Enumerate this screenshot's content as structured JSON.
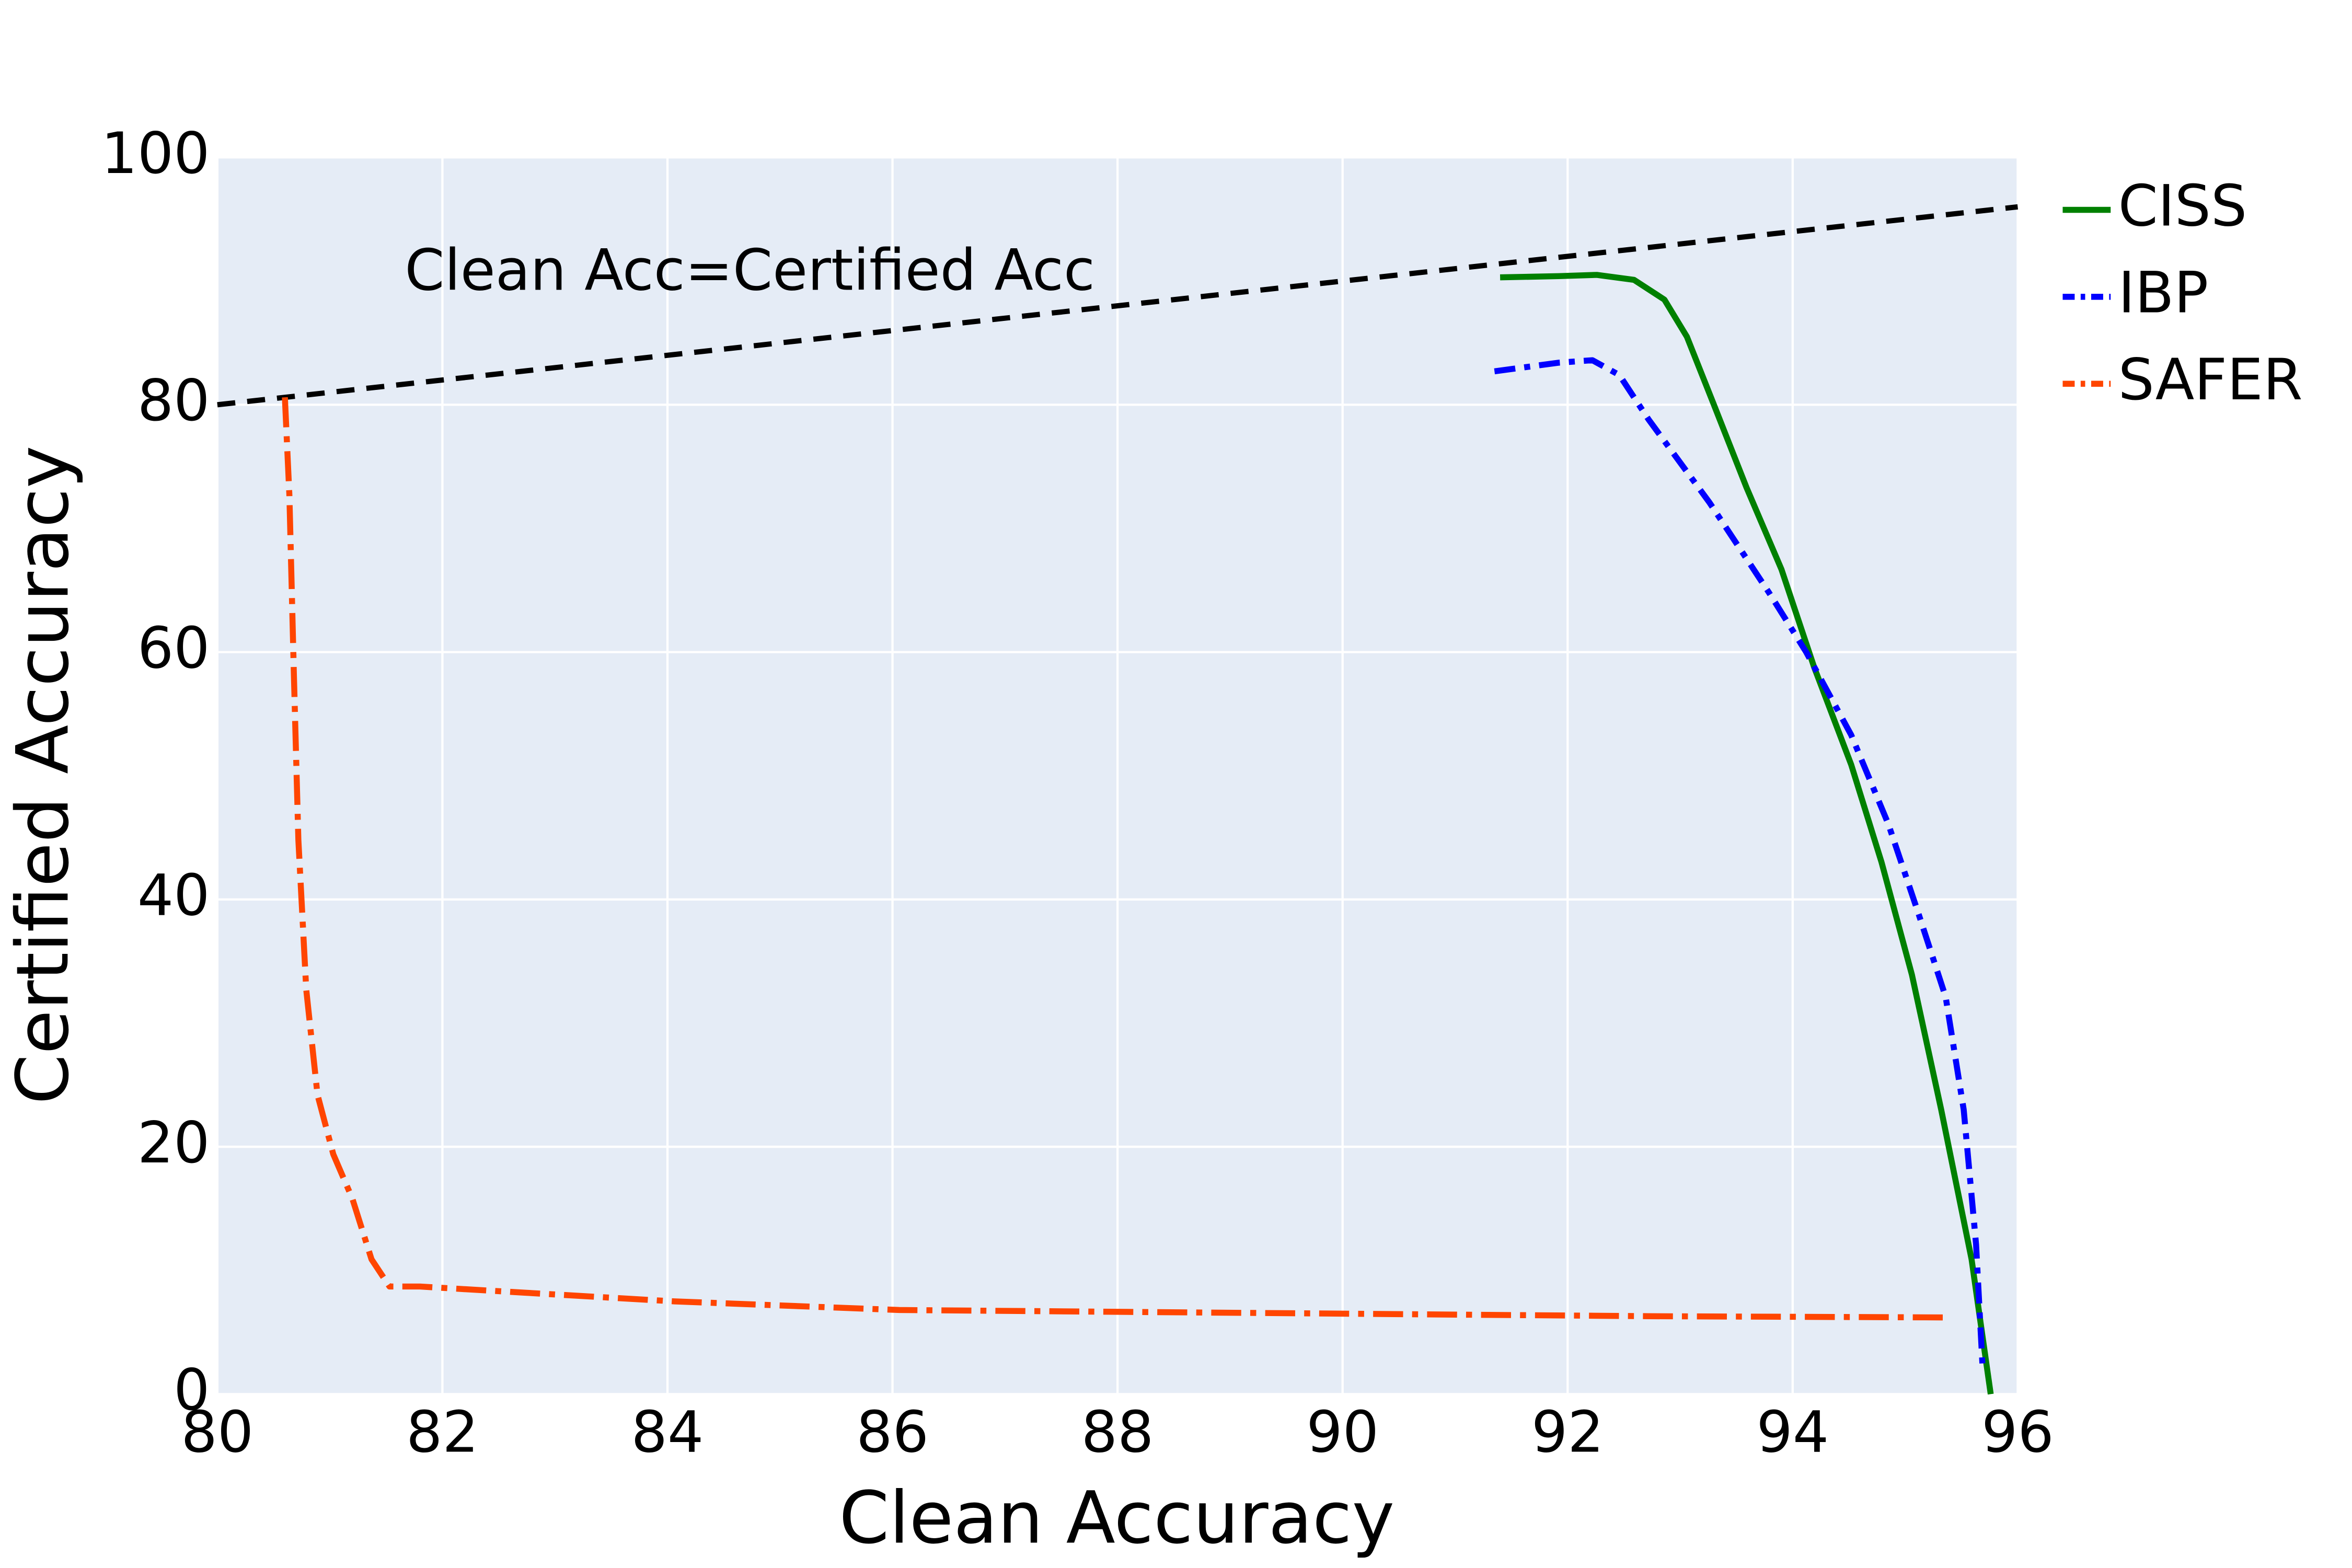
{
  "chart_data": {
    "type": "line",
    "x_label": "Clean Accuracy",
    "y_label": "Certified Accuracy",
    "annotation": "Clean Acc=Certified Acc",
    "xlim": [
      80,
      96
    ],
    "ylim": [
      0,
      100
    ],
    "xticks": [
      80,
      82,
      84,
      86,
      88,
      90,
      92,
      94,
      96
    ],
    "yticks": [
      0,
      20,
      40,
      60,
      80,
      100
    ],
    "grid": true,
    "background": "#e5ecf6",
    "legend": "right",
    "reference_line": {
      "x": [
        80,
        96
      ],
      "y": [
        80,
        96
      ],
      "color": "#000000",
      "dash": "dash"
    },
    "series": [
      {
        "name": "CISS",
        "color": "#008000",
        "dash": "solid",
        "x": [
          91.4,
          91.92,
          92.26,
          92.59,
          92.86,
          93.06,
          93.3,
          93.59,
          93.9,
          94.19,
          94.52,
          94.79,
          95.06,
          95.32,
          95.59,
          95.76
        ],
        "y": [
          90.3,
          90.4,
          90.5,
          90.1,
          88.5,
          85.5,
          80.0,
          73.3,
          66.7,
          58.8,
          50.9,
          43.0,
          33.9,
          23.0,
          10.9,
          0
        ]
      },
      {
        "name": "IBP",
        "color": "#0000ff",
        "dash": "dashdot",
        "x": [
          91.35,
          91.92,
          92.22,
          92.46,
          92.72,
          93.26,
          93.79,
          94.12,
          94.52,
          94.85,
          95.12,
          95.36,
          95.52,
          95.63,
          95.69
        ],
        "y": [
          82.7,
          83.4,
          83.6,
          82.4,
          78.8,
          72.1,
          64.8,
          60.0,
          53.3,
          46.1,
          38.8,
          32.1,
          23.0,
          12.1,
          1.8
        ]
      },
      {
        "name": "SAFER",
        "color": "#ff4500",
        "dash": "longdashdot",
        "x": [
          80.6,
          80.64,
          80.68,
          80.72,
          80.79,
          80.89,
          81.03,
          81.2,
          81.37,
          81.53,
          81.8,
          82.73,
          84.06,
          86.06,
          87.39,
          90.06,
          92.72,
          95.36
        ],
        "y": [
          80.6,
          72.7,
          58.2,
          44.8,
          32.7,
          24.2,
          19.4,
          15.8,
          10.9,
          8.7,
          8.7,
          8.2,
          7.5,
          6.8,
          6.7,
          6.5,
          6.3,
          6.2
        ]
      }
    ]
  }
}
